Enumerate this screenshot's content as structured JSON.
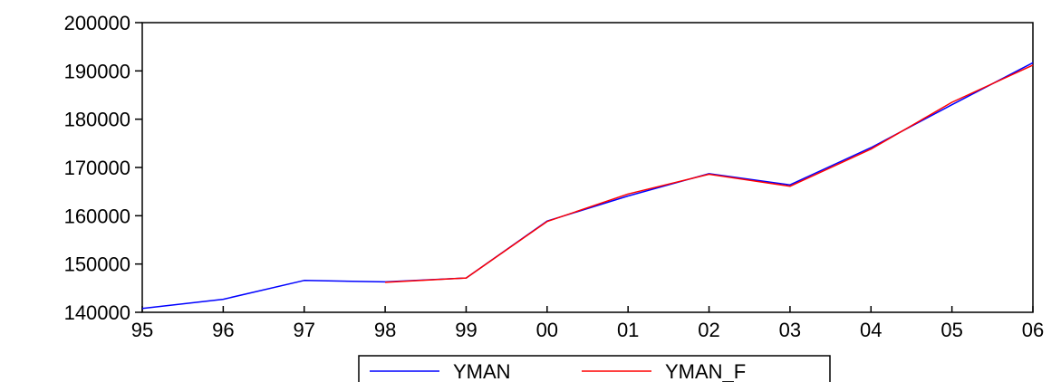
{
  "chart_data": {
    "type": "line",
    "title": "",
    "xlabel": "",
    "ylabel": "",
    "categories": [
      "95",
      "96",
      "97",
      "98",
      "99",
      "00",
      "01",
      "02",
      "03",
      "04",
      "05",
      "06"
    ],
    "ylim": [
      140000,
      200000
    ],
    "yticks": [
      140000,
      150000,
      160000,
      170000,
      180000,
      190000,
      200000
    ],
    "grid": false,
    "legend_position": "bottom",
    "series": [
      {
        "name": "YMAN",
        "color": "#0000ff",
        "values": [
          140800,
          142700,
          146600,
          146300,
          147100,
          158900,
          164100,
          168700,
          166400,
          174100,
          183000,
          191700
        ]
      },
      {
        "name": "YMAN_F",
        "color": "#ff0000",
        "values": [
          null,
          null,
          null,
          146200,
          147100,
          158800,
          164500,
          168600,
          166100,
          173800,
          183500,
          191200
        ]
      }
    ]
  }
}
